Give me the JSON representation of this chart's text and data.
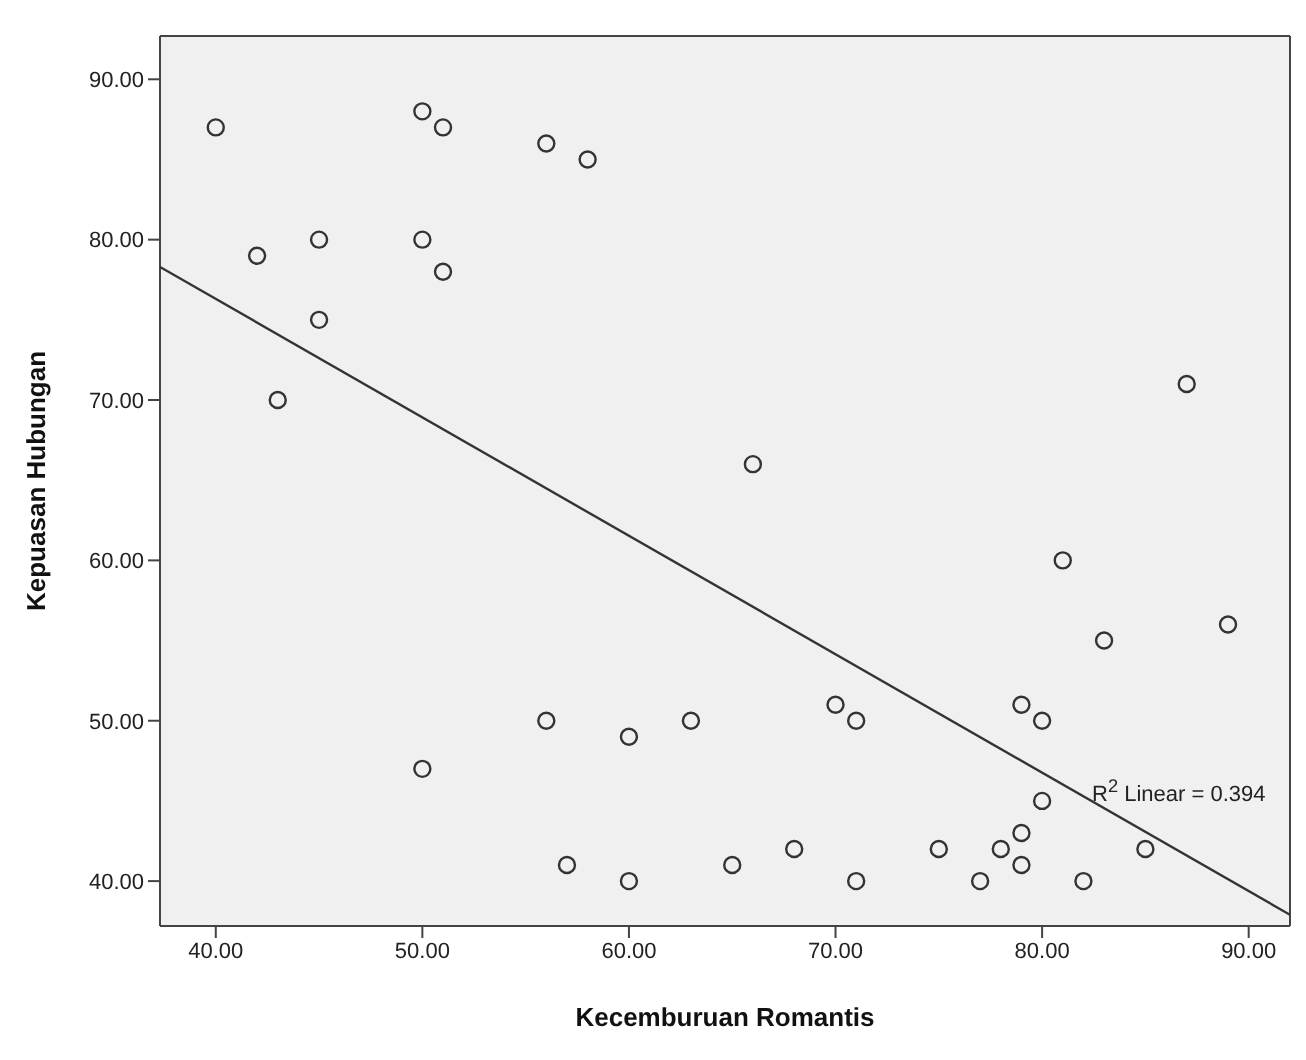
{
  "chart_data": {
    "type": "scatter",
    "xlabel": "Kecemburuan Romantis",
    "ylabel": "Kepuasan Hubungan",
    "xlim": [
      37.3,
      92
    ],
    "ylim": [
      37.2,
      92.7
    ],
    "xticks": [
      {
        "value": 40,
        "label": "40.00"
      },
      {
        "value": 50,
        "label": "50.00"
      },
      {
        "value": 60,
        "label": "60.00"
      },
      {
        "value": 70,
        "label": "70.00"
      },
      {
        "value": 80,
        "label": "80.00"
      },
      {
        "value": 90,
        "label": "90.00"
      }
    ],
    "yticks": [
      {
        "value": 40,
        "label": "40.00"
      },
      {
        "value": 50,
        "label": "50.00"
      },
      {
        "value": 60,
        "label": "60.00"
      },
      {
        "value": 70,
        "label": "70.00"
      },
      {
        "value": 80,
        "label": "80.00"
      },
      {
        "value": 90,
        "label": "90.00"
      }
    ],
    "grid": false,
    "series": [
      {
        "marker": "circle",
        "color": "#333333",
        "x": [
          40,
          42,
          43,
          45,
          45,
          50,
          50,
          51,
          51,
          56,
          58,
          50,
          56,
          60,
          57,
          60,
          63,
          65,
          68,
          70,
          71,
          71,
          75,
          77,
          78,
          79,
          79,
          79,
          80,
          80,
          81,
          82,
          83,
          85,
          87,
          89,
          66
        ],
        "values": [
          87,
          79,
          70,
          80,
          75,
          88,
          80,
          87,
          78,
          86,
          85,
          47,
          50,
          49,
          41,
          40,
          50,
          41,
          42,
          51,
          50,
          40,
          42,
          40,
          42,
          51,
          43,
          41,
          50,
          45,
          60,
          40,
          55,
          42,
          71,
          56,
          66
        ]
      },
      {
        "type": "line",
        "marker": "none",
        "color": "#333333",
        "x": [
          37.3,
          92
        ],
        "values": [
          78.3,
          37.9
        ]
      }
    ],
    "annotations": [
      "R$^{2}$ Linear = 0.394"
    ]
  }
}
